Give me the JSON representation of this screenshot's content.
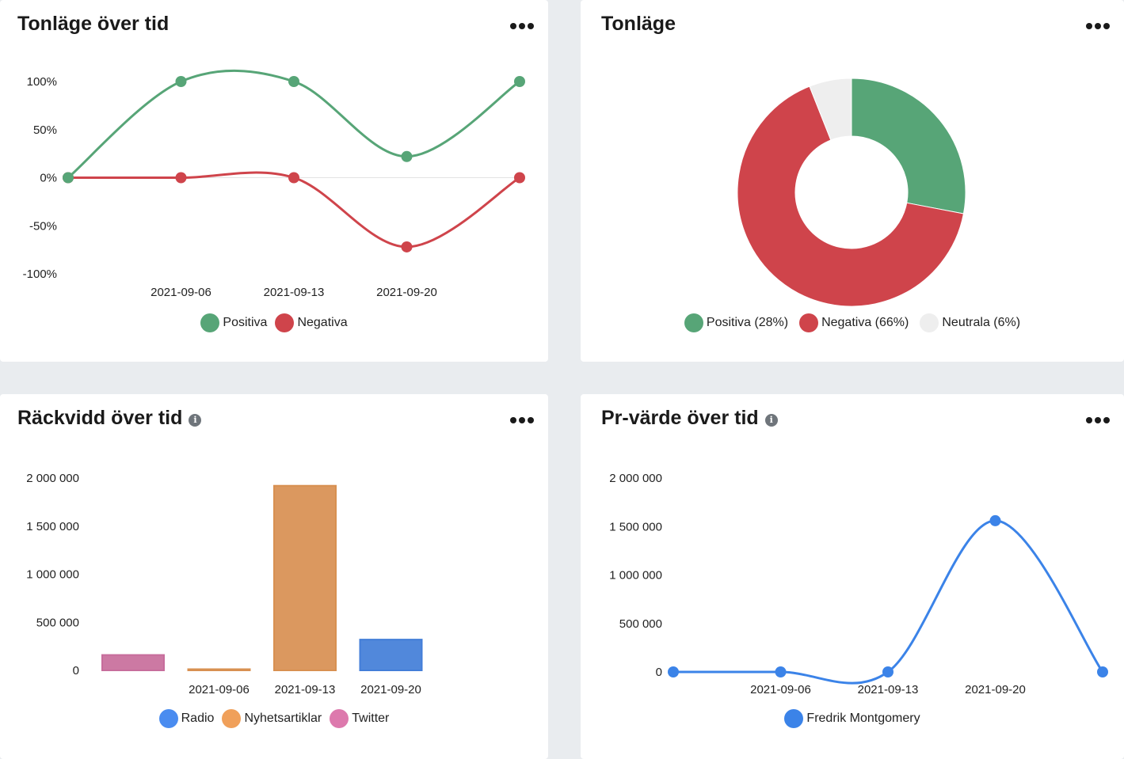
{
  "colors": {
    "positive": "#57a577",
    "negative": "#cf444b",
    "neutral": "#eeeeee",
    "radio": "#4a8cf0",
    "news": "#f0a05a",
    "twitter": "#dd79ad",
    "fredrik": "#3b83e8"
  },
  "cards": {
    "tone_over_time": {
      "title": "Tonläge över tid"
    },
    "tone": {
      "title": "Tonläge"
    },
    "reach_over_time": {
      "title": "Räckvidd över tid",
      "info": "i"
    },
    "pr_value_over_time": {
      "title": "Pr-värde över tid",
      "info": "i"
    }
  },
  "chart_data": [
    {
      "id": "tone_over_time",
      "type": "line",
      "x": [
        "2021-08-30",
        "2021-09-06",
        "2021-09-13",
        "2021-09-20",
        "2021-09-27"
      ],
      "x_tick_labels": [
        "2021-09-06",
        "2021-09-13",
        "2021-09-20"
      ],
      "y_ticks": [
        "100%",
        "50%",
        "0%",
        "-50%",
        "-100%"
      ],
      "ylim": [
        -100,
        100
      ],
      "series": [
        {
          "name": "Positiva",
          "values": [
            0,
            100,
            100,
            22,
            100
          ],
          "color": "#57a577"
        },
        {
          "name": "Negativa",
          "values": [
            0,
            0,
            0,
            -72,
            0
          ],
          "color": "#cf444b"
        }
      ]
    },
    {
      "id": "tone",
      "type": "pie",
      "slices": [
        {
          "name": "Positiva",
          "value": 28,
          "color": "#57a577",
          "legend": "Positiva (28%)"
        },
        {
          "name": "Negativa",
          "value": 66,
          "color": "#cf444b",
          "legend": "Negativa (66%)"
        },
        {
          "name": "Neutrala",
          "value": 6,
          "color": "#eeeeee",
          "legend": "Neutrala (6%)"
        }
      ]
    },
    {
      "id": "reach_over_time",
      "type": "bar",
      "categories": [
        "2021-08-30",
        "2021-09-06",
        "2021-09-13",
        "2021-09-20"
      ],
      "x_tick_labels": [
        "",
        "2021-09-06",
        "2021-09-13",
        "2021-09-20"
      ],
      "y_ticks": [
        "2 000 000",
        "1 500 000",
        "1 000 000",
        "500 000",
        "0"
      ],
      "ylim": [
        0,
        2000000
      ],
      "bars": [
        {
          "category": "2021-08-30",
          "series": "Twitter",
          "value": 160000,
          "color": "#dd79ad"
        },
        {
          "category": "2021-09-06",
          "series": "Nyhetsartiklar",
          "value": 8000,
          "color": "#f0a05a"
        },
        {
          "category": "2021-09-13",
          "series": "Nyhetsartiklar",
          "value": 1920000,
          "color": "#f0a05a"
        },
        {
          "category": "2021-09-20",
          "series": "Radio",
          "value": 320000,
          "color": "#4a8cf0"
        }
      ],
      "legend": [
        {
          "name": "Radio",
          "color": "#4a8cf0"
        },
        {
          "name": "Nyhetsartiklar",
          "color": "#f0a05a"
        },
        {
          "name": "Twitter",
          "color": "#dd79ad"
        }
      ]
    },
    {
      "id": "pr_value_over_time",
      "type": "line",
      "x": [
        "2021-08-30",
        "2021-09-06",
        "2021-09-13",
        "2021-09-20",
        "2021-09-27"
      ],
      "x_tick_labels": [
        "2021-09-06",
        "2021-09-13",
        "2021-09-20"
      ],
      "y_ticks": [
        "2 000 000",
        "1 500 000",
        "1 000 000",
        "500 000",
        "0"
      ],
      "ylim": [
        0,
        2000000
      ],
      "series": [
        {
          "name": "Fredrik Montgomery",
          "values": [
            0,
            0,
            0,
            1560000,
            0
          ],
          "color": "#3b83e8"
        }
      ]
    }
  ]
}
